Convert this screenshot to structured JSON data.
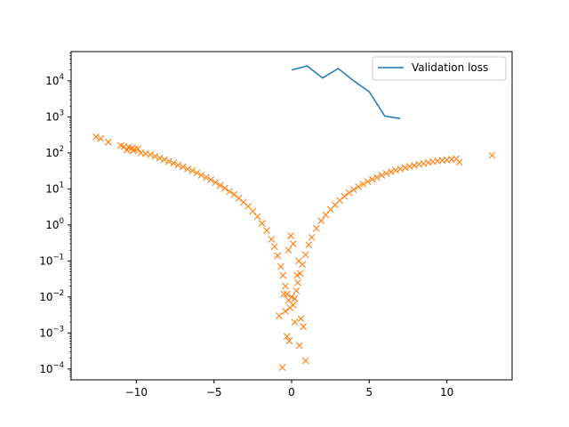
{
  "chart_data": {
    "type": "line",
    "x_scale": "linear",
    "y_scale": "log",
    "xlim": [
      -14.2,
      14.2
    ],
    "ylim": [
      5e-05,
      65000
    ],
    "x_ticks": [
      -10,
      -5,
      0,
      5,
      10
    ],
    "x_tick_labels": [
      "−10",
      "−5",
      "0",
      "5",
      "10"
    ],
    "y_ticks": [
      0.0001,
      0.001,
      0.01,
      0.1,
      1,
      10,
      100,
      1000,
      10000
    ],
    "y_tick_labels": [
      {
        "base": "10",
        "exp": "−4"
      },
      {
        "base": "10",
        "exp": "−3"
      },
      {
        "base": "10",
        "exp": "−2"
      },
      {
        "base": "10",
        "exp": "−1"
      },
      {
        "base": "10",
        "exp": "0"
      },
      {
        "base": "10",
        "exp": "1"
      },
      {
        "base": "10",
        "exp": "2"
      },
      {
        "base": "10",
        "exp": "3"
      },
      {
        "base": "10",
        "exp": "4"
      }
    ],
    "grid": false,
    "legend_placement": "upper-right",
    "series": [
      {
        "name": "Validation loss",
        "kind": "line",
        "color": "#1f77b4",
        "x": [
          0,
          1,
          2,
          3,
          4,
          5,
          6,
          7
        ],
        "y": [
          20000,
          26000,
          12000,
          22000,
          10000,
          5000,
          1050,
          900
        ]
      },
      {
        "kind": "scatter",
        "marker": "x",
        "color": "#ff7f0e",
        "x": [
          -12.6,
          -12.3,
          -11.8,
          -11.0,
          -10.8,
          -10.5,
          -10.3,
          -10.1,
          -9.9,
          -10.6,
          -10.2,
          -9.7,
          -9.4,
          -9.1,
          -8.8,
          -8.5,
          -8.2,
          -7.9,
          -7.6,
          -7.3,
          -7.0,
          -6.7,
          -6.4,
          -6.1,
          -5.8,
          -5.5,
          -5.2,
          -4.9,
          -4.6,
          -4.3,
          -4.0,
          -3.7,
          -3.4,
          -3.1,
          -2.8,
          -2.5,
          -2.2,
          -1.9,
          -1.6,
          -1.3,
          -1.1,
          -0.9,
          -0.7,
          -0.55,
          -0.4,
          -0.3,
          -0.2,
          -0.1,
          0,
          0.1,
          0.2,
          0.3,
          0.4,
          0.55,
          0.7,
          0.9,
          1.1,
          1.3,
          1.6,
          1.9,
          2.2,
          2.5,
          2.8,
          3.1,
          3.4,
          3.7,
          4.0,
          4.3,
          4.6,
          4.9,
          5.2,
          5.5,
          5.8,
          6.1,
          6.4,
          6.7,
          7.0,
          7.3,
          7.6,
          7.9,
          8.2,
          8.5,
          8.8,
          9.1,
          9.4,
          9.7,
          10.0,
          10.3,
          10.6,
          10.8,
          12.9,
          -0.6,
          -0.3,
          -0.15,
          0.5,
          0.9,
          -0.4,
          0.2,
          0.6,
          -0.8,
          0.75,
          -0.5,
          0.35,
          -0.2,
          0.1,
          -0.05,
          0.45
        ],
        "y": [
          280,
          250,
          200,
          160,
          150,
          145,
          135,
          125,
          130,
          120,
          115,
          100,
          95,
          90,
          80,
          72,
          65,
          58,
          52,
          46,
          41,
          36,
          32,
          28,
          24,
          21,
          18,
          15,
          12.5,
          10.5,
          8.5,
          7,
          5.5,
          4.3,
          3.3,
          2.4,
          1.7,
          1.1,
          0.7,
          0.4,
          0.25,
          0.14,
          0.07,
          0.04,
          0.02,
          0.012,
          0.008,
          0.005,
          0.01,
          0.006,
          0.009,
          0.015,
          0.025,
          0.045,
          0.08,
          0.15,
          0.28,
          0.45,
          0.8,
          1.3,
          1.9,
          2.7,
          3.6,
          4.8,
          6.2,
          7.8,
          9.5,
          11.5,
          13.5,
          16,
          18.5,
          21,
          24,
          27,
          30,
          33,
          36,
          39,
          42,
          45,
          48,
          51,
          54,
          57,
          60,
          62,
          64,
          66,
          68,
          55,
          85,
          0.00011,
          0.0008,
          0.0006,
          0.00045,
          0.00017,
          0.004,
          0.002,
          0.0025,
          0.003,
          0.0015,
          0.012,
          0.04,
          0.2,
          0.3,
          0.5,
          0.1
        ]
      }
    ]
  },
  "colors": {
    "line_series": "#1f77b4",
    "scatter_series": "#ff7f0e",
    "axes": "#000000",
    "background": "#ffffff"
  }
}
